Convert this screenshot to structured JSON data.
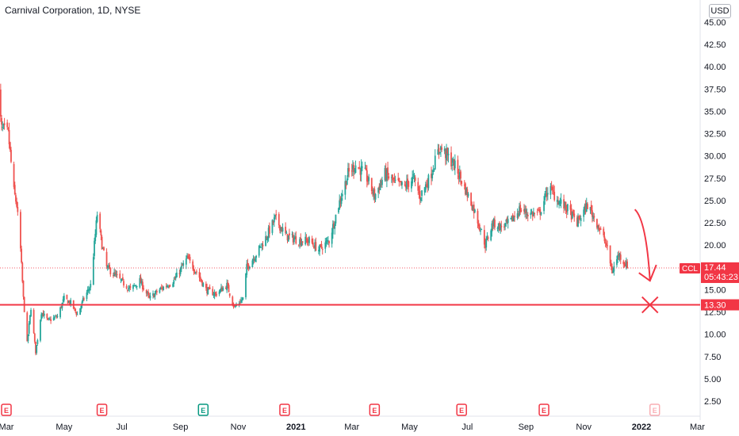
{
  "header": {
    "title": "Carnival Corporation, 1D, NYSE",
    "currency": "USD"
  },
  "colors": {
    "up": "#26a69a",
    "down": "#ef5350",
    "annotation": "#f23645",
    "earnings_red": "#f23645",
    "earnings_green": "#089981",
    "price_line": "#f23645"
  },
  "chart_data": {
    "type": "candlestick",
    "title": "Carnival Corporation, 1D, NYSE",
    "symbol": "CCL",
    "currency": "USD",
    "ylim": [
      2.5,
      45
    ],
    "y_ticks": [
      "45.00",
      "42.50",
      "40.00",
      "37.50",
      "35.00",
      "32.50",
      "30.00",
      "27.50",
      "25.00",
      "22.50",
      "20.00",
      "17.50",
      "15.00",
      "12.50",
      "10.00",
      "7.50",
      "5.00",
      "2.50"
    ],
    "x_ticks": [
      {
        "label": "Mar",
        "date": "2020-03-01"
      },
      {
        "label": "May",
        "date": "2020-05-01"
      },
      {
        "label": "Jul",
        "date": "2020-07-01"
      },
      {
        "label": "Sep",
        "date": "2020-09-01"
      },
      {
        "label": "Nov",
        "date": "2020-11-01"
      },
      {
        "label": "2021",
        "date": "2021-01-01",
        "bold": true
      },
      {
        "label": "Mar",
        "date": "2021-03-01"
      },
      {
        "label": "May",
        "date": "2021-05-01"
      },
      {
        "label": "Jul",
        "date": "2021-07-01"
      },
      {
        "label": "Sep",
        "date": "2021-09-01"
      },
      {
        "label": "Nov",
        "date": "2021-11-01"
      },
      {
        "label": "2022",
        "date": "2022-01-01",
        "bold": true
      },
      {
        "label": "Mar",
        "date": "2022-03-01"
      }
    ],
    "price_path": [
      {
        "date": "2020-02-20",
        "close": 38.0
      },
      {
        "date": "2020-02-25",
        "close": 33.0
      },
      {
        "date": "2020-03-03",
        "close": 32.5
      },
      {
        "date": "2020-03-09",
        "close": 26.0
      },
      {
        "date": "2020-03-12",
        "close": 24.5
      },
      {
        "date": "2020-03-16",
        "close": 19.5
      },
      {
        "date": "2020-03-19",
        "close": 14.0
      },
      {
        "date": "2020-03-23",
        "close": 9.0
      },
      {
        "date": "2020-03-27",
        "close": 13.0
      },
      {
        "date": "2020-04-01",
        "close": 8.0
      },
      {
        "date": "2020-04-07",
        "close": 12.5
      },
      {
        "date": "2020-04-14",
        "close": 11.5
      },
      {
        "date": "2020-04-24",
        "close": 12.0
      },
      {
        "date": "2020-05-01",
        "close": 14.0
      },
      {
        "date": "2020-05-08",
        "close": 13.5
      },
      {
        "date": "2020-05-15",
        "close": 12.2
      },
      {
        "date": "2020-05-22",
        "close": 14.0
      },
      {
        "date": "2020-05-29",
        "close": 15.5
      },
      {
        "date": "2020-06-05",
        "close": 23.5
      },
      {
        "date": "2020-06-10",
        "close": 20.0
      },
      {
        "date": "2020-06-15",
        "close": 17.5
      },
      {
        "date": "2020-06-22",
        "close": 16.8
      },
      {
        "date": "2020-06-30",
        "close": 16.0
      },
      {
        "date": "2020-07-10",
        "close": 15.0
      },
      {
        "date": "2020-07-20",
        "close": 16.0
      },
      {
        "date": "2020-07-30",
        "close": 14.0
      },
      {
        "date": "2020-08-10",
        "close": 15.0
      },
      {
        "date": "2020-08-25",
        "close": 16.0
      },
      {
        "date": "2020-09-08",
        "close": 18.5
      },
      {
        "date": "2020-09-18",
        "close": 17.0
      },
      {
        "date": "2020-09-28",
        "close": 15.0
      },
      {
        "date": "2020-10-08",
        "close": 14.5
      },
      {
        "date": "2020-10-20",
        "close": 15.5
      },
      {
        "date": "2020-10-28",
        "close": 13.0
      },
      {
        "date": "2020-11-06",
        "close": 14.0
      },
      {
        "date": "2020-11-10",
        "close": 17.5
      },
      {
        "date": "2020-11-20",
        "close": 19.0
      },
      {
        "date": "2020-12-01",
        "close": 21.0
      },
      {
        "date": "2020-12-10",
        "close": 23.0
      },
      {
        "date": "2020-12-22",
        "close": 21.0
      },
      {
        "date": "2021-01-05",
        "close": 20.5
      },
      {
        "date": "2021-01-15",
        "close": 20.5
      },
      {
        "date": "2021-01-25",
        "close": 19.5
      },
      {
        "date": "2021-02-05",
        "close": 20.5
      },
      {
        "date": "2021-02-15",
        "close": 24.5
      },
      {
        "date": "2021-02-25",
        "close": 28.0
      },
      {
        "date": "2021-03-05",
        "close": 29.0
      },
      {
        "date": "2021-03-15",
        "close": 28.0
      },
      {
        "date": "2021-03-25",
        "close": 25.5
      },
      {
        "date": "2021-04-05",
        "close": 28.0
      },
      {
        "date": "2021-04-15",
        "close": 27.0
      },
      {
        "date": "2021-04-25",
        "close": 26.5
      },
      {
        "date": "2021-05-05",
        "close": 27.5
      },
      {
        "date": "2021-05-12",
        "close": 25.5
      },
      {
        "date": "2021-05-22",
        "close": 27.5
      },
      {
        "date": "2021-06-02",
        "close": 31.0
      },
      {
        "date": "2021-06-10",
        "close": 30.0
      },
      {
        "date": "2021-06-20",
        "close": 28.5
      },
      {
        "date": "2021-06-30",
        "close": 26.0
      },
      {
        "date": "2021-07-08",
        "close": 24.0
      },
      {
        "date": "2021-07-16",
        "close": 21.5
      },
      {
        "date": "2021-07-20",
        "close": 20.0
      },
      {
        "date": "2021-07-28",
        "close": 22.5
      },
      {
        "date": "2021-08-05",
        "close": 22.0
      },
      {
        "date": "2021-08-15",
        "close": 22.5
      },
      {
        "date": "2021-08-25",
        "close": 24.0
      },
      {
        "date": "2021-09-05",
        "close": 23.5
      },
      {
        "date": "2021-09-15",
        "close": 23.5
      },
      {
        "date": "2021-09-25",
        "close": 26.5
      },
      {
        "date": "2021-10-05",
        "close": 25.0
      },
      {
        "date": "2021-10-15",
        "close": 24.0
      },
      {
        "date": "2021-10-25",
        "close": 22.5
      },
      {
        "date": "2021-11-05",
        "close": 24.5
      },
      {
        "date": "2021-11-15",
        "close": 22.5
      },
      {
        "date": "2021-11-25",
        "close": 20.0
      },
      {
        "date": "2021-12-01",
        "close": 17.0
      },
      {
        "date": "2021-12-08",
        "close": 19.0
      },
      {
        "date": "2021-12-14",
        "close": 18.0
      },
      {
        "date": "2021-12-20",
        "close": 17.44
      }
    ],
    "last_price": {
      "symbol": "CCL",
      "value": "17.44",
      "countdown": "05:43:23",
      "y": 17.44
    },
    "horizontal_line": {
      "label": "13.30",
      "y": 13.3
    },
    "annotations": [
      {
        "type": "arrow",
        "from": {
          "date": "2021-12-25",
          "y": 24.0
        },
        "to": {
          "date": "2022-01-10",
          "y": 16.0
        }
      },
      {
        "type": "x-mark",
        "date": "2022-01-10",
        "y": 13.3
      }
    ],
    "earnings_markers": [
      {
        "date": "2020-03-01",
        "color": "red"
      },
      {
        "date": "2020-06-10",
        "color": "red"
      },
      {
        "date": "2020-09-25",
        "color": "green"
      },
      {
        "date": "2020-12-20",
        "color": "red"
      },
      {
        "date": "2021-03-25",
        "color": "red"
      },
      {
        "date": "2021-06-25",
        "color": "red"
      },
      {
        "date": "2021-09-20",
        "color": "red"
      },
      {
        "date": "2022-01-15",
        "color": "faded"
      }
    ]
  }
}
